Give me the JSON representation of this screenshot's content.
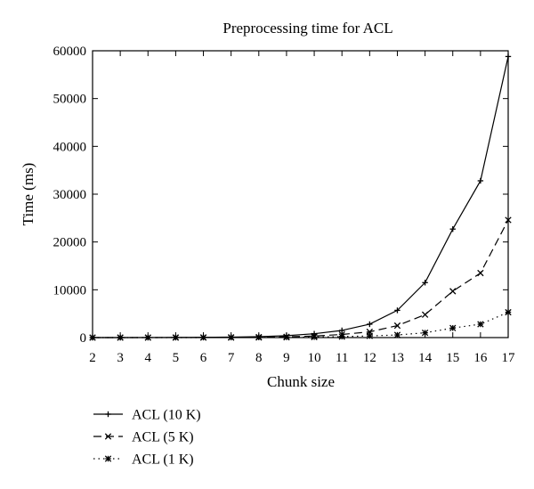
{
  "chart_data": {
    "type": "line",
    "title": "Preprocessing time for ACL",
    "xlabel": "Chunk size",
    "ylabel": "Time (ms)",
    "x": [
      2,
      3,
      4,
      5,
      6,
      7,
      8,
      9,
      10,
      11,
      12,
      13,
      14,
      15,
      16,
      17
    ],
    "xlim": [
      2,
      17
    ],
    "ylim": [
      0,
      60000
    ],
    "xticks": [
      2,
      3,
      4,
      5,
      6,
      7,
      8,
      9,
      10,
      11,
      12,
      13,
      14,
      15,
      16,
      17
    ],
    "yticks": [
      0,
      10000,
      20000,
      30000,
      40000,
      50000,
      60000
    ],
    "grid": false,
    "legend_position": "below plot, left",
    "series": [
      {
        "name": "ACL (10 K)",
        "line_style": "solid",
        "marker": "plus",
        "color": "#000000",
        "values": [
          2,
          5,
          12,
          25,
          50,
          100,
          200,
          400,
          800,
          1500,
          2800,
          5700,
          11500,
          22700,
          32800,
          58800
        ]
      },
      {
        "name": "ACL (5 K)",
        "line_style": "dashed",
        "marker": "cross",
        "color": "#000000",
        "values": [
          1,
          2,
          5,
          10,
          20,
          40,
          80,
          160,
          320,
          650,
          1200,
          2500,
          4800,
          9700,
          13500,
          24600
        ]
      },
      {
        "name": "ACL (1 K)",
        "line_style": "dotted",
        "marker": "star",
        "color": "#000000",
        "values": [
          0,
          1,
          2,
          4,
          8,
          15,
          30,
          60,
          110,
          200,
          350,
          550,
          1000,
          2000,
          2800,
          5300
        ]
      }
    ]
  }
}
